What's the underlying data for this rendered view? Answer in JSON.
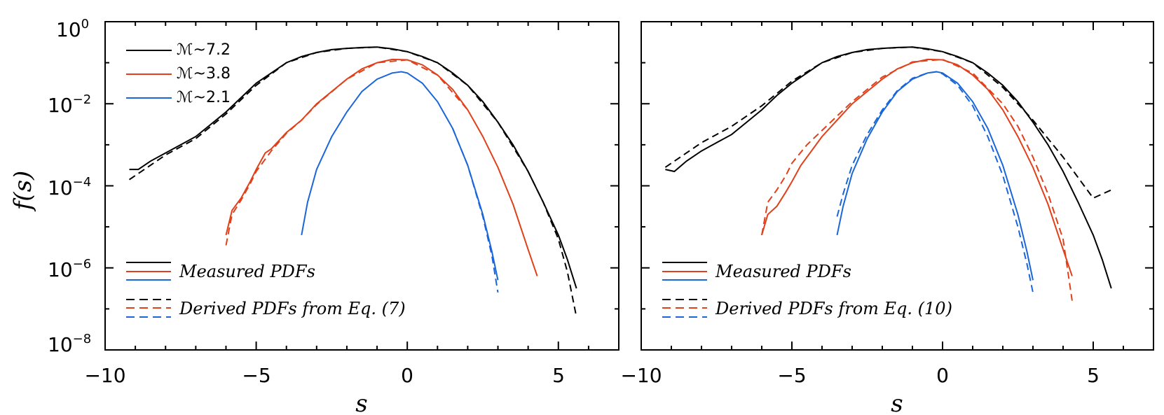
{
  "chart_data": [
    {
      "type": "line",
      "xlabel": "s",
      "ylabel": "f(s)",
      "xlim": [
        -10,
        7
      ],
      "ylim_log10": [
        -8,
        0
      ],
      "y_scale": "log",
      "x_ticks": [
        "−10",
        "−5",
        "0",
        "5"
      ],
      "y_ticks": [
        {
          "base": "10",
          "exp": "0"
        },
        {
          "base": "10",
          "exp": "−2"
        },
        {
          "base": "10",
          "exp": "−4"
        },
        {
          "base": "10",
          "exp": "−6"
        },
        {
          "base": "10",
          "exp": "−8"
        }
      ],
      "mach_legend": [
        {
          "label": "ℳ~7.2",
          "color": "#000000"
        },
        {
          "label": "ℳ~3.8",
          "color": "#e0401a"
        },
        {
          "label": "ℳ~2.1",
          "color": "#1a66d9"
        }
      ],
      "style_legend": {
        "measured": "Measured PDFs",
        "derived": "Derived PDFs from Eq. (7)"
      },
      "series": [
        {
          "color": "#000000",
          "style": "solid",
          "x": [
            -9.2,
            -8.9,
            -8.5,
            -8.0,
            -7.5,
            -7.0,
            -6.5,
            -6.0,
            -5.5,
            -5.0,
            -4.5,
            -4.0,
            -3.5,
            -3.0,
            -2.5,
            -2.0,
            -1.5,
            -1.0,
            -0.5,
            0.0,
            0.5,
            1.0,
            1.5,
            2.0,
            2.5,
            3.0,
            3.5,
            4.0,
            4.5,
            5.0,
            5.3,
            5.6
          ],
          "y": [
            -3.6,
            -3.6,
            -3.4,
            -3.2,
            -3.0,
            -2.8,
            -2.5,
            -2.2,
            -1.85,
            -1.5,
            -1.25,
            -1.0,
            -0.85,
            -0.75,
            -0.68,
            -0.65,
            -0.63,
            -0.62,
            -0.66,
            -0.73,
            -0.85,
            -1.0,
            -1.25,
            -1.55,
            -1.95,
            -2.45,
            -3.0,
            -3.65,
            -4.4,
            -5.2,
            -5.8,
            -6.5
          ]
        },
        {
          "color": "#000000",
          "style": "dashed",
          "x": [
            -9.2,
            -8.5,
            -8.0,
            -7.5,
            -7.0,
            -6.5,
            -6.0,
            -5.5,
            -5.0,
            -4.0,
            -3.0,
            -2.0,
            -1.0,
            0.0,
            1.0,
            2.0,
            3.0,
            4.0,
            4.5,
            5.0,
            5.3,
            5.6
          ],
          "y": [
            -3.85,
            -3.5,
            -3.25,
            -3.05,
            -2.85,
            -2.55,
            -2.25,
            -1.9,
            -1.55,
            -1.0,
            -0.75,
            -0.65,
            -0.62,
            -0.73,
            -1.0,
            -1.55,
            -2.45,
            -3.65,
            -4.4,
            -5.3,
            -6.1,
            -7.2
          ]
        },
        {
          "color": "#e0401a",
          "style": "solid",
          "x": [
            -6.0,
            -5.8,
            -5.5,
            -5.2,
            -5.0,
            -4.7,
            -4.5,
            -4.0,
            -3.5,
            -3.0,
            -2.5,
            -2.0,
            -1.5,
            -1.0,
            -0.5,
            0.0,
            0.5,
            1.0,
            1.5,
            2.0,
            2.5,
            3.0,
            3.5,
            4.0,
            4.3
          ],
          "y": [
            -5.2,
            -4.6,
            -4.3,
            -3.9,
            -3.6,
            -3.2,
            -3.1,
            -2.7,
            -2.4,
            -2.0,
            -1.7,
            -1.4,
            -1.15,
            -1.0,
            -0.92,
            -0.93,
            -1.05,
            -1.3,
            -1.65,
            -2.15,
            -2.8,
            -3.55,
            -4.45,
            -5.55,
            -6.2
          ]
        },
        {
          "color": "#e0401a",
          "style": "dashed",
          "x": [
            -6.0,
            -5.8,
            -5.5,
            -5.2,
            -5.0,
            -4.5,
            -4.0,
            -3.5,
            -3.0,
            -2.0,
            -1.0,
            0.0,
            1.0,
            2.0
          ],
          "y": [
            -5.45,
            -4.7,
            -4.35,
            -3.95,
            -3.65,
            -3.15,
            -2.72,
            -2.4,
            -2.02,
            -1.4,
            -1.0,
            -0.93,
            -1.3,
            -2.15
          ]
        },
        {
          "color": "#1a66d9",
          "style": "solid",
          "x": [
            -3.5,
            -3.3,
            -3.0,
            -2.5,
            -2.0,
            -1.5,
            -1.0,
            -0.5,
            -0.2,
            0.0,
            0.5,
            1.0,
            1.5,
            2.0,
            2.5,
            2.8,
            3.0
          ],
          "y": [
            -5.2,
            -4.4,
            -3.6,
            -2.8,
            -2.2,
            -1.7,
            -1.4,
            -1.25,
            -1.22,
            -1.25,
            -1.5,
            -1.95,
            -2.6,
            -3.5,
            -4.7,
            -5.6,
            -6.3
          ]
        },
        {
          "color": "#1a66d9",
          "style": "dashed",
          "x": [
            1.5,
            2.0,
            2.5,
            2.8,
            3.0
          ],
          "y": [
            -2.6,
            -3.5,
            -4.75,
            -5.7,
            -6.6
          ]
        }
      ]
    },
    {
      "type": "line",
      "xlabel": "s",
      "xlim": [
        -10,
        7
      ],
      "ylim_log10": [
        -8,
        0
      ],
      "y_scale": "log",
      "x_ticks": [
        "−10",
        "−5",
        "0",
        "5"
      ],
      "style_legend": {
        "measured": "Measured PDFs",
        "derived": "Derived PDFs from Eq. (10)"
      },
      "series": [
        {
          "color": "#000000",
          "style": "solid",
          "x": [
            -9.2,
            -8.9,
            -8.5,
            -8.0,
            -7.5,
            -7.0,
            -6.5,
            -6.0,
            -5.5,
            -5.0,
            -4.5,
            -4.0,
            -3.5,
            -3.0,
            -2.5,
            -2.0,
            -1.5,
            -1.0,
            -0.5,
            0.0,
            0.5,
            1.0,
            1.5,
            2.0,
            2.5,
            3.0,
            3.5,
            4.0,
            4.5,
            5.0,
            5.3,
            5.6
          ],
          "y": [
            -3.6,
            -3.65,
            -3.4,
            -3.15,
            -2.95,
            -2.75,
            -2.45,
            -2.15,
            -1.8,
            -1.5,
            -1.25,
            -1.0,
            -0.85,
            -0.75,
            -0.68,
            -0.65,
            -0.63,
            -0.62,
            -0.66,
            -0.73,
            -0.85,
            -1.0,
            -1.25,
            -1.55,
            -1.95,
            -2.45,
            -3.0,
            -3.65,
            -4.4,
            -5.2,
            -5.8,
            -6.5
          ]
        },
        {
          "color": "#000000",
          "style": "dashed",
          "x": [
            -9.2,
            -8.5,
            -8.0,
            -7.5,
            -7.0,
            -6.5,
            -6.0,
            -5.5,
            -5.0,
            -4.0,
            -3.0,
            -2.0,
            -1.0,
            0.0,
            1.0,
            2.0,
            2.5,
            3.0,
            3.5,
            4.0,
            4.5,
            5.0,
            5.3,
            5.6
          ],
          "y": [
            -3.55,
            -3.2,
            -2.95,
            -2.75,
            -2.55,
            -2.3,
            -2.05,
            -1.75,
            -1.45,
            -1.0,
            -0.75,
            -0.65,
            -0.62,
            -0.73,
            -1.0,
            -1.6,
            -2.0,
            -2.4,
            -2.85,
            -3.3,
            -3.8,
            -4.3,
            -4.2,
            -4.1
          ]
        },
        {
          "color": "#e0401a",
          "style": "solid",
          "x": [
            -6.0,
            -5.8,
            -5.5,
            -5.2,
            -5.0,
            -4.7,
            -4.5,
            -4.0,
            -3.5,
            -3.0,
            -2.5,
            -2.0,
            -1.5,
            -1.0,
            -0.5,
            0.0,
            0.5,
            1.0,
            1.5,
            2.0,
            2.5,
            3.0,
            3.5,
            4.0,
            4.3
          ],
          "y": [
            -5.2,
            -4.7,
            -4.5,
            -4.15,
            -3.9,
            -3.5,
            -3.3,
            -2.8,
            -2.4,
            -2.0,
            -1.7,
            -1.4,
            -1.15,
            -1.0,
            -0.92,
            -0.93,
            -1.05,
            -1.3,
            -1.65,
            -2.15,
            -2.8,
            -3.55,
            -4.45,
            -5.55,
            -6.2
          ]
        },
        {
          "color": "#e0401a",
          "style": "dashed",
          "x": [
            -6.0,
            -5.8,
            -5.5,
            -5.2,
            -5.0,
            -4.5,
            -4.0,
            -3.5,
            -3.0,
            -2.0,
            -1.0,
            0.0,
            1.0,
            2.0,
            2.5,
            3.0,
            3.5,
            4.0,
            4.3
          ],
          "y": [
            -5.2,
            -4.4,
            -4.1,
            -3.75,
            -3.45,
            -3.0,
            -2.65,
            -2.3,
            -1.95,
            -1.35,
            -0.98,
            -0.92,
            -1.25,
            -2.0,
            -2.55,
            -3.3,
            -4.2,
            -5.3,
            -6.8
          ]
        },
        {
          "color": "#1a66d9",
          "style": "solid",
          "x": [
            -3.5,
            -3.3,
            -3.0,
            -2.5,
            -2.0,
            -1.5,
            -1.0,
            -0.5,
            -0.2,
            0.0,
            0.5,
            1.0,
            1.5,
            2.0,
            2.5,
            2.8,
            3.0
          ],
          "y": [
            -5.2,
            -4.5,
            -3.7,
            -2.85,
            -2.2,
            -1.7,
            -1.4,
            -1.25,
            -1.22,
            -1.25,
            -1.5,
            -1.95,
            -2.6,
            -3.5,
            -4.7,
            -5.6,
            -6.3
          ]
        },
        {
          "color": "#1a66d9",
          "style": "dashed",
          "x": [
            -3.5,
            -3.3,
            -3.0,
            -2.5,
            -2.0,
            -1.5,
            -1.0,
            -0.5,
            -0.2,
            0.0,
            0.5,
            1.0,
            1.5,
            2.0,
            2.5,
            2.8,
            3.0
          ],
          "y": [
            -4.75,
            -4.2,
            -3.5,
            -2.75,
            -2.15,
            -1.68,
            -1.38,
            -1.25,
            -1.22,
            -1.27,
            -1.55,
            -2.05,
            -2.8,
            -3.75,
            -5.0,
            -5.9,
            -6.6
          ]
        }
      ]
    }
  ]
}
